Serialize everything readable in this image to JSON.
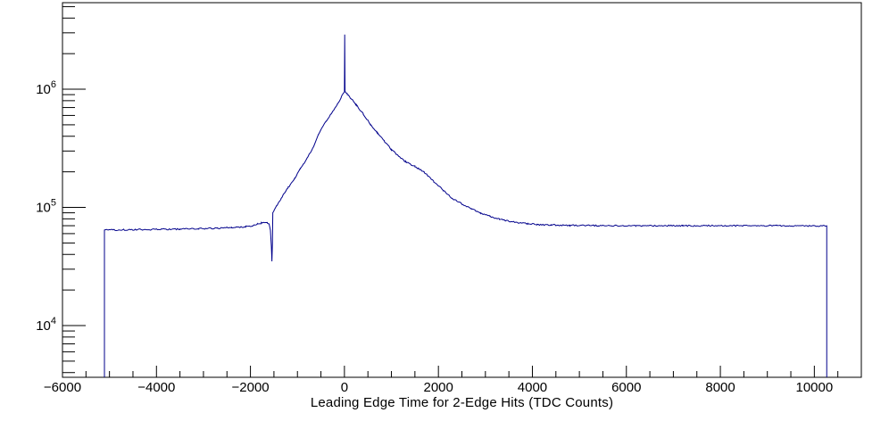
{
  "window": {
    "background": "#ffffff"
  },
  "chart_data": {
    "type": "line",
    "subtype": "histogram-1d-log-y",
    "title": "",
    "xlabel": "Leading Edge Time for 2-Edge Hits (TDC Counts)",
    "ylabel": "",
    "grid": false,
    "legend": "none",
    "axis_color": "#000000",
    "label_color": "#000000",
    "line_color": "#00008b",
    "x_range": [
      -6000,
      11000
    ],
    "y_range": [
      3650,
      5400000
    ],
    "y_scale": "log",
    "x_major_ticks": [
      -6000,
      -4000,
      -2000,
      0,
      2000,
      4000,
      6000,
      8000,
      10000
    ],
    "x_major_tick_labels": [
      "−6000",
      "−4000",
      "−2000",
      "0",
      "2000",
      "4000",
      "6000",
      "8000",
      "10000"
    ],
    "x_minor_tick_step": 500,
    "y_major_ticks": [
      10000,
      100000,
      1000000
    ],
    "y_major_tick_labels": [
      {
        "mantissa": "10",
        "exponent": "4"
      },
      {
        "mantissa": "10",
        "exponent": "5"
      },
      {
        "mantissa": "10",
        "exponent": "6"
      }
    ],
    "series": [
      {
        "name": "leading-edge-time-2-edge-hits",
        "color": "#00008b",
        "data_x_min": -5107,
        "data_x_max": 10264,
        "peak": {
          "x": 0,
          "y": 952000
        },
        "spike": {
          "x": 6,
          "y": 2900000
        },
        "dip": {
          "x": -1543,
          "y": 35000
        },
        "points": [
          [
            -5107,
            64300
          ],
          [
            -4700,
            64600
          ],
          [
            -4300,
            64900
          ],
          [
            -3900,
            65200
          ],
          [
            -3500,
            65600
          ],
          [
            -3100,
            66100
          ],
          [
            -2700,
            66700
          ],
          [
            -2400,
            67400
          ],
          [
            -2100,
            68800
          ],
          [
            -1950,
            70300
          ],
          [
            -1850,
            72000
          ],
          [
            -1770,
            73800
          ],
          [
            -1700,
            74600
          ],
          [
            -1640,
            74000
          ],
          [
            -1600,
            71500
          ],
          [
            -1575,
            64000
          ],
          [
            -1555,
            47000
          ],
          [
            -1543,
            35000
          ],
          [
            -1532,
            50000
          ],
          [
            -1524,
            91000
          ],
          [
            -1500,
            94000
          ],
          [
            -1440,
            104000
          ],
          [
            -1350,
            119000
          ],
          [
            -1200,
            147000
          ],
          [
            -1050,
            177000
          ],
          [
            -950,
            208000
          ],
          [
            -800,
            259000
          ],
          [
            -650,
            331000
          ],
          [
            -550,
            418000
          ],
          [
            -400,
            528000
          ],
          [
            -250,
            648000
          ],
          [
            -150,
            748000
          ],
          [
            -80,
            838000
          ],
          [
            -30,
            918000
          ],
          [
            0,
            952000
          ],
          [
            6,
            2900000
          ],
          [
            13,
            948000
          ],
          [
            60,
            908000
          ],
          [
            150,
            828000
          ],
          [
            250,
            738000
          ],
          [
            400,
            618000
          ],
          [
            550,
            508000
          ],
          [
            700,
            428000
          ],
          [
            850,
            363000
          ],
          [
            1000,
            309000
          ],
          [
            1150,
            272000
          ],
          [
            1300,
            244000
          ],
          [
            1500,
            222000
          ],
          [
            1700,
            198000
          ],
          [
            1900,
            166000
          ],
          [
            2100,
            140000
          ],
          [
            2300,
            119000
          ],
          [
            2500,
            107000
          ],
          [
            2700,
            97000
          ],
          [
            2900,
            89500
          ],
          [
            3100,
            84000
          ],
          [
            3300,
            79800
          ],
          [
            3500,
            76600
          ],
          [
            3700,
            74300
          ],
          [
            3900,
            72700
          ],
          [
            4100,
            71700
          ],
          [
            4400,
            70900
          ],
          [
            4800,
            70400
          ],
          [
            5400,
            70100
          ],
          [
            6200,
            70000
          ],
          [
            7200,
            70000
          ],
          [
            8200,
            70100
          ],
          [
            9200,
            70000
          ],
          [
            10264,
            69800
          ]
        ]
      }
    ]
  }
}
